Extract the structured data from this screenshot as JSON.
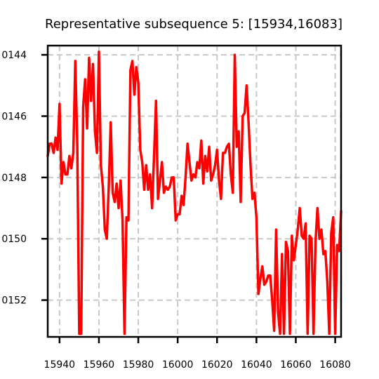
{
  "chart_data": {
    "type": "line",
    "title": "Representative subsequence 5: [15934,16083]",
    "xlabel": "",
    "ylabel": "",
    "xlim": [
      15934,
      16083
    ],
    "ylim": [
      0.01532,
      0.01437
    ],
    "y_inverted": true,
    "grid": true,
    "grid_style": "dashed",
    "x_ticks": [
      15940,
      15960,
      15980,
      16000,
      16020,
      16040,
      16060,
      16080
    ],
    "x_tick_labels": [
      "15940",
      "15960",
      "15980",
      "16000",
      "16020",
      "16040",
      "16060",
      "16080"
    ],
    "y_ticks": [
      0.0144,
      0.0146,
      0.0148,
      0.015,
      0.0152
    ],
    "y_tick_labels": [
      "0144",
      "0146",
      "0148",
      "0150",
      "0152"
    ],
    "series": [
      {
        "color": "#ff0000",
        "x": [
          15934,
          15935,
          15936,
          15937,
          15938,
          15939,
          15940,
          15941,
          15942,
          15943,
          15944,
          15945,
          15946,
          15947,
          15948,
          15949,
          15950,
          15951,
          15952,
          15953,
          15954,
          15955,
          15956,
          15957,
          15958,
          15959,
          15960,
          15961,
          15962,
          15963,
          15964,
          15965,
          15966,
          15967,
          15968,
          15969,
          15970,
          15971,
          15972,
          15973,
          15974,
          15975,
          15976,
          15977,
          15978,
          15979,
          15980,
          15981,
          15982,
          15983,
          15984,
          15985,
          15986,
          15987,
          15988,
          15989,
          15990,
          15991,
          15992,
          15993,
          15994,
          15995,
          15996,
          15997,
          15998,
          15999,
          16000,
          16001,
          16002,
          16003,
          16004,
          16005,
          16006,
          16007,
          16008,
          16009,
          16010,
          16011,
          16012,
          16013,
          16014,
          16015,
          16016,
          16017,
          16018,
          16019,
          16020,
          16021,
          16022,
          16023,
          16024,
          16025,
          16026,
          16027,
          16028,
          16029,
          16030,
          16031,
          16032,
          16033,
          16034,
          16035,
          16036,
          16037,
          16038,
          16039,
          16040,
          16041,
          16042,
          16043,
          16044,
          16045,
          16046,
          16047,
          16048,
          16049,
          16050,
          16051,
          16052,
          16053,
          16054,
          16055,
          16056,
          16057,
          16058,
          16059,
          16060,
          16061,
          16062,
          16063,
          16064,
          16065,
          16066,
          16067,
          16068,
          16069,
          16070,
          16071,
          16072,
          16073,
          16074,
          16075,
          16076,
          16077,
          16078,
          16079,
          16080,
          16081,
          16082,
          16083
        ],
        "y": [
          0.01473,
          0.01469,
          0.01469,
          0.01472,
          0.01467,
          0.01471,
          0.01456,
          0.01482,
          0.01475,
          0.01479,
          0.01479,
          0.01473,
          0.01477,
          0.01472,
          0.01442,
          0.01469,
          0.01531,
          0.01531,
          0.01457,
          0.01448,
          0.01464,
          0.01441,
          0.01455,
          0.01443,
          0.01465,
          0.01472,
          0.01439,
          0.01476,
          0.01483,
          0.01497,
          0.015,
          0.01483,
          0.01462,
          0.01485,
          0.01488,
          0.01482,
          0.0149,
          0.01481,
          0.01494,
          0.01531,
          0.01493,
          0.01494,
          0.01445,
          0.01442,
          0.01453,
          0.01444,
          0.01449,
          0.01471,
          0.01475,
          0.01484,
          0.01476,
          0.01484,
          0.01479,
          0.0149,
          0.01473,
          0.01455,
          0.01487,
          0.01481,
          0.01475,
          0.01485,
          0.01483,
          0.01484,
          0.01483,
          0.0148,
          0.0148,
          0.01494,
          0.01492,
          0.01492,
          0.01486,
          0.01489,
          0.0148,
          0.01469,
          0.01475,
          0.01481,
          0.01479,
          0.0148,
          0.01475,
          0.01477,
          0.01468,
          0.01482,
          0.01473,
          0.01478,
          0.0147,
          0.01481,
          0.01479,
          0.01476,
          0.01471,
          0.01481,
          0.01487,
          0.01472,
          0.01472,
          0.0147,
          0.01469,
          0.01479,
          0.01485,
          0.0144,
          0.0147,
          0.01465,
          0.01488,
          0.0146,
          0.01459,
          0.0145,
          0.01462,
          0.01476,
          0.01487,
          0.01485,
          0.01493,
          0.01518,
          0.01513,
          0.01509,
          0.01515,
          0.01514,
          0.01512,
          0.01512,
          0.0152,
          0.0153,
          0.01497,
          0.01524,
          0.01531,
          0.01505,
          0.01531,
          0.01501,
          0.01504,
          0.01531,
          0.01499,
          0.01507,
          0.01502,
          0.01497,
          0.0149,
          0.01499,
          0.015,
          0.01495,
          0.01531,
          0.01499,
          0.015,
          0.01531,
          0.01501,
          0.0149,
          0.015,
          0.01497,
          0.01505,
          0.01504,
          0.01514,
          0.01531,
          0.01498,
          0.01493,
          0.01531,
          0.01502,
          0.01504,
          0.01491
        ]
      }
    ]
  }
}
